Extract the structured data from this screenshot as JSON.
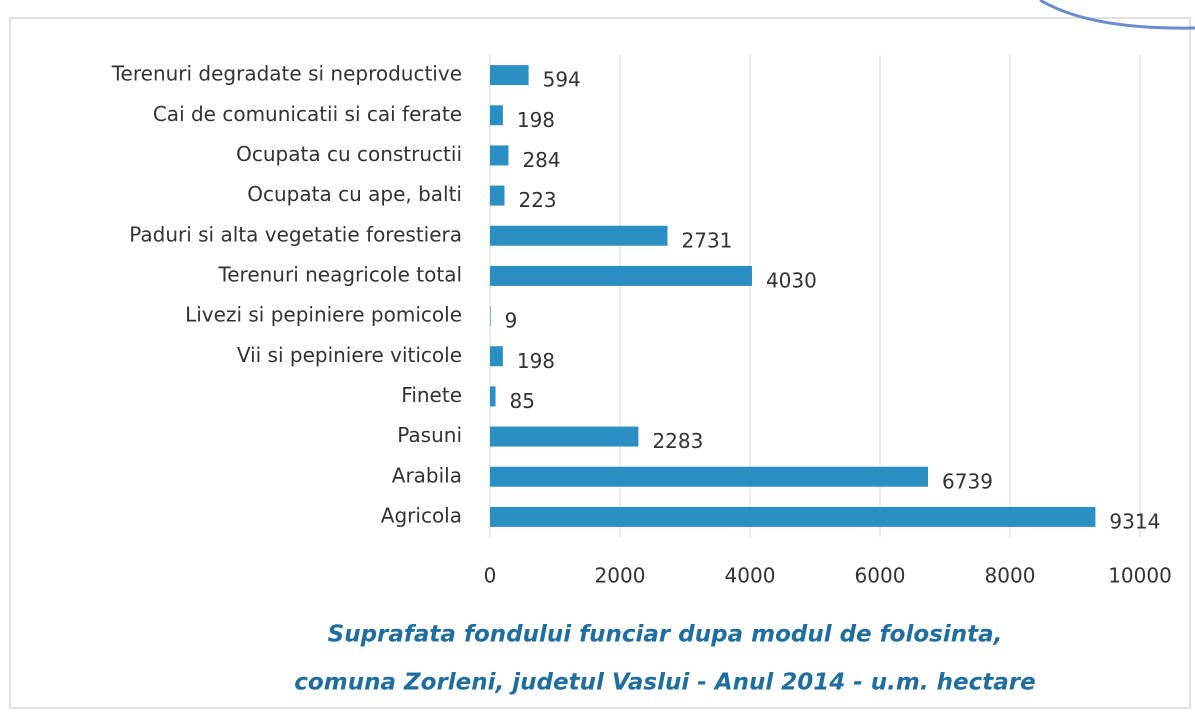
{
  "chart_data": {
    "type": "bar",
    "orientation": "horizontal",
    "title": [
      "Suprafata fondului funciar dupa modul de folosinta,",
      "comuna Zorleni, judetul Vaslui - Anul 2014 - u.m. hectare"
    ],
    "categories": [
      "Terenuri degradate si neproductive",
      "Cai de comunicatii si cai ferate",
      "Ocupata cu constructii",
      "Ocupata cu ape, balti",
      "Paduri si alta vegetatie forestiera",
      "Terenuri neagricole total",
      "Livezi si pepiniere pomicole",
      "Vii si pepiniere viticole",
      "Finete",
      "Pasuni",
      "Arabila",
      "Agricola"
    ],
    "values": [
      594,
      198,
      284,
      223,
      2731,
      4030,
      9,
      198,
      85,
      2283,
      6739,
      9314
    ],
    "color": "#2b8fc4",
    "xlim": [
      0,
      10000
    ],
    "xticks": [
      0,
      2000,
      4000,
      6000,
      8000,
      10000
    ],
    "grid": true
  }
}
